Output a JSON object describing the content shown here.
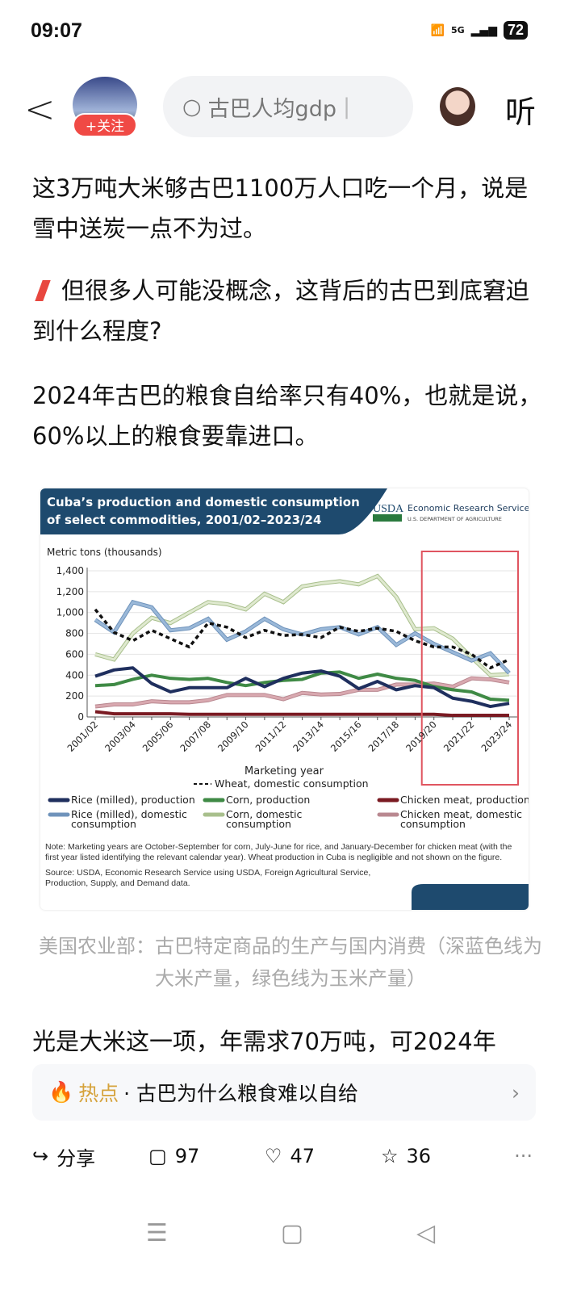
{
  "status": {
    "time": "09:07",
    "network": "5G",
    "battery": "72"
  },
  "header": {
    "follow_label": "+关注",
    "search_text": "古巴人均gdp",
    "listen_label": "听"
  },
  "article": {
    "p1": "这3万吨大米够古巴1100万人口吃一个月，说是雪中送炭一点不为过。",
    "heading": "但很多人可能没概念，这背后的古巴到底窘迫到什么程度?",
    "p2": "2024年古巴的粮食自给率只有40%，也就是说，60%以上的粮食要靠进口。",
    "caption": "美国农业部：古巴特定商品的生产与国内消费（深蓝色线为大米产量，绿色线为玉米产量）",
    "p3": "光是大米这一项，年需求70万吨，可2024年"
  },
  "hot": {
    "label": "热点",
    "text": "· 古巴为什么粮食难以自给"
  },
  "actions": {
    "share": "分享",
    "comments": "97",
    "likes": "47",
    "favorites": "36"
  },
  "chart_data": {
    "type": "line",
    "title": "Cuba’s production and domestic consumption of select commodities, 2001/02–2023/24",
    "title_line1": "Cuba’s production and domestic consumption",
    "title_line2": "of select commodities, 2001/02–2023/24",
    "logo": "USDA",
    "org": "Economic Research Service",
    "dept": "U.S. DEPARTMENT OF AGRICULTURE",
    "ylabel": "Metric tons (thousands)",
    "xlabel": "Marketing year",
    "ylim": [
      0,
      1400
    ],
    "yticks": [
      0,
      200,
      400,
      600,
      800,
      1000,
      1200,
      1400
    ],
    "grid": true,
    "x": [
      "2001/02",
      "2002/03",
      "2003/04",
      "2004/05",
      "2005/06",
      "2006/07",
      "2007/08",
      "2008/09",
      "2009/10",
      "2010/11",
      "2011/12",
      "2012/13",
      "2013/14",
      "2014/15",
      "2015/16",
      "2016/17",
      "2017/18",
      "2018/19",
      "2019/20",
      "2020/21",
      "2021/22",
      "2022/23",
      "2023/24"
    ],
    "xtick_labels": [
      "2001/02",
      "2003/04",
      "2005/06",
      "2007/08",
      "2009/10",
      "2011/12",
      "2013/14",
      "2015/16",
      "2017/18",
      "2019/20",
      "2021/22",
      "2023/24"
    ],
    "series": [
      {
        "name": "Corn, domestic consumption",
        "color": "#dfe9cf",
        "stroke": "#a8bf8c",
        "values": [
          600,
          550,
          800,
          950,
          900,
          1000,
          1100,
          1080,
          1030,
          1180,
          1100,
          1250,
          1280,
          1300,
          1270,
          1350,
          1150,
          840,
          850,
          750,
          570,
          400,
          410
        ]
      },
      {
        "name": "Rice (milled), domestic consumption",
        "color": "#9ab8d8",
        "stroke": "#6f93bb",
        "values": [
          930,
          810,
          1100,
          1050,
          830,
          850,
          940,
          740,
          820,
          940,
          840,
          790,
          840,
          860,
          790,
          860,
          690,
          800,
          700,
          620,
          540,
          610,
          420
        ]
      },
      {
        "name": "Chicken meat, domestic consumption",
        "color": "#d9a9b0",
        "stroke": "#b98890",
        "values": [
          100,
          120,
          120,
          150,
          140,
          140,
          160,
          210,
          210,
          210,
          170,
          230,
          215,
          220,
          260,
          260,
          310,
          310,
          320,
          290,
          370,
          360,
          330
        ]
      },
      {
        "name": "Corn, production",
        "color": "#3f8a45",
        "values": [
          300,
          310,
          360,
          400,
          370,
          360,
          370,
          330,
          300,
          330,
          350,
          360,
          420,
          430,
          370,
          410,
          370,
          350,
          290,
          260,
          240,
          170,
          160
        ]
      },
      {
        "name": "Rice (milled), production",
        "color": "#1f2f5e",
        "values": [
          390,
          450,
          470,
          320,
          240,
          280,
          280,
          280,
          370,
          290,
          370,
          420,
          440,
          390,
          270,
          340,
          260,
          300,
          280,
          180,
          150,
          100,
          130
        ]
      },
      {
        "name": "Chicken meat, production",
        "color": "#7a1a22",
        "values": [
          50,
          30,
          30,
          30,
          30,
          25,
          25,
          25,
          25,
          25,
          25,
          25,
          25,
          25,
          25,
          25,
          25,
          25,
          25,
          15,
          15,
          15,
          15
        ]
      },
      {
        "name": "Wheat, domestic consumption",
        "color": "#111111",
        "dashed": true,
        "values": [
          1030,
          810,
          730,
          830,
          750,
          670,
          900,
          860,
          760,
          830,
          780,
          790,
          760,
          860,
          820,
          850,
          820,
          730,
          670,
          670,
          600,
          470,
          550
        ]
      }
    ],
    "legend": [
      "Wheat, domestic consumption",
      "Rice (milled), production",
      "Corn, production",
      "Chicken meat, production",
      "Rice (milled), domestic consumption",
      "Corn, domestic consumption",
      "Chicken meat, domestic consumption"
    ],
    "highlight": {
      "from": "2019/20",
      "to": "2023/24",
      "color": "#e05560"
    },
    "note": "Note: Marketing years are October-September for corn, July-June for rice, and January-December for chicken meat (with the first year listed identifying the relevant calendar year). Wheat production in Cuba is negligible and not shown on the figure.",
    "source": "Source: USDA, Economic Research Service using USDA, Foreign Agricultural Service, Production, Supply, and Demand data."
  }
}
